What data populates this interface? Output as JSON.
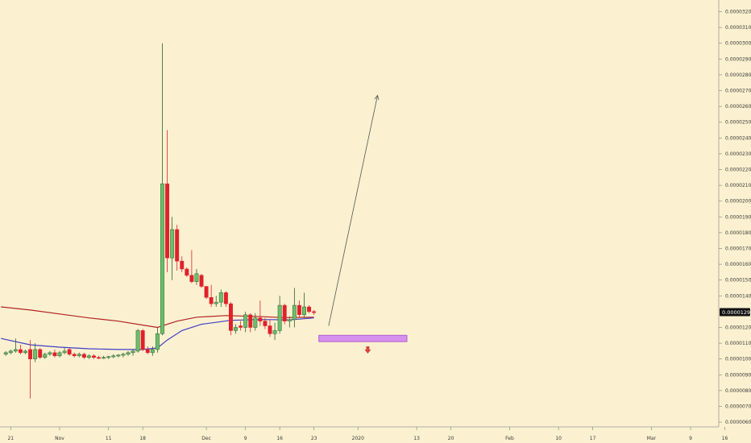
{
  "chart_data": {
    "type": "candlestick",
    "title": "",
    "xlabel": "",
    "ylabel": "",
    "ylim": [
      6e-07,
      3.3e-06
    ],
    "y_tick_labels": [
      "0.00003200",
      "0.00003100",
      "0.00003000",
      "0.00002900",
      "0.00002800",
      "0.00002700",
      "0.00002600",
      "0.00002500",
      "0.00002400",
      "0.00002300",
      "0.00002200",
      "0.00002100",
      "0.00002000",
      "0.00001900",
      "0.00001800",
      "0.00001700",
      "0.00001600",
      "0.00001500",
      "0.00001400",
      "0.00001200",
      "0.00001100",
      "0.00001000",
      "0.00000900",
      "0.00000800",
      "0.00000700",
      "0.00000600"
    ],
    "y_tick_values": [
      3.2e-06,
      3.1e-06,
      3e-06,
      2.9e-06,
      2.8e-06,
      2.7e-06,
      2.6e-06,
      2.5e-06,
      2.4e-06,
      2.3e-06,
      2.2e-06,
      2.1e-06,
      2e-06,
      1.9e-06,
      1.8e-06,
      1.7e-06,
      1.6e-06,
      1.5e-06,
      1.4e-06,
      1.2e-06,
      1.1e-06,
      1e-06,
      9e-07,
      8e-07,
      7e-07,
      6e-07
    ],
    "last_price_label": "0.00001297",
    "last_price_value": 1.297e-06,
    "x_tick_labels": [
      "21",
      "Nov",
      "11",
      "18",
      "Dec",
      "9",
      "16",
      "23",
      "2020",
      "13",
      "20",
      "Feb",
      "10",
      "17",
      "Mar",
      "9",
      "16"
    ],
    "x_tick_days": [
      -10,
      0,
      10,
      17,
      30,
      38,
      45,
      52,
      61,
      73,
      80,
      92,
      102,
      109,
      121,
      129,
      136
    ],
    "candles": [
      {
        "day": -11,
        "o": 1.03e-06,
        "h": 1.05e-06,
        "l": 1.02e-06,
        "c": 1.04e-06
      },
      {
        "day": -10,
        "o": 1.04e-06,
        "h": 1.06e-06,
        "l": 1.03e-06,
        "c": 1.05e-06
      },
      {
        "day": -9,
        "o": 1.05e-06,
        "h": 1.13e-06,
        "l": 1.04e-06,
        "c": 1.06e-06
      },
      {
        "day": -8,
        "o": 1.06e-06,
        "h": 1.09e-06,
        "l": 1.03e-06,
        "c": 1.04e-06
      },
      {
        "day": -7,
        "o": 1.04e-06,
        "h": 1.06e-06,
        "l": 1.03e-06,
        "c": 1.05e-06
      },
      {
        "day": -6,
        "o": 1.06e-06,
        "h": 1.12e-06,
        "l": 7.5e-07,
        "c": 1e-06
      },
      {
        "day": -5,
        "o": 1e-06,
        "h": 1.1e-06,
        "l": 9.8e-07,
        "c": 1.06e-06
      },
      {
        "day": -4,
        "o": 1.06e-06,
        "h": 1.07e-06,
        "l": 1e-06,
        "c": 1.01e-06
      },
      {
        "day": -3,
        "o": 1.01e-06,
        "h": 1.04e-06,
        "l": 1e-06,
        "c": 1.03e-06
      },
      {
        "day": -2,
        "o": 1.03e-06,
        "h": 1.05e-06,
        "l": 1.02e-06,
        "c": 1.04e-06
      },
      {
        "day": -1,
        "o": 1.04e-06,
        "h": 1.06e-06,
        "l": 1.01e-06,
        "c": 1.02e-06
      },
      {
        "day": 0,
        "o": 1.02e-06,
        "h": 1.05e-06,
        "l": 1.01e-06,
        "c": 1.04e-06
      },
      {
        "day": 1,
        "o": 1.04e-06,
        "h": 1.07e-06,
        "l": 1.03e-06,
        "c": 1.05e-06
      },
      {
        "day": 2,
        "o": 1.06e-06,
        "h": 1.07e-06,
        "l": 1.02e-06,
        "c": 1.03e-06
      },
      {
        "day": 3,
        "o": 1.03e-06,
        "h": 1.04e-06,
        "l": 1.01e-06,
        "c": 1.02e-06
      },
      {
        "day": 4,
        "o": 1.02e-06,
        "h": 1.04e-06,
        "l": 1.01e-06,
        "c": 1.03e-06
      },
      {
        "day": 5,
        "o": 1.03e-06,
        "h": 1.04e-06,
        "l": 1e-06,
        "c": 1.01e-06
      },
      {
        "day": 6,
        "o": 1.01e-06,
        "h": 1.03e-06,
        "l": 1e-06,
        "c": 1.02e-06
      },
      {
        "day": 7,
        "o": 1.02e-06,
        "h": 1.03e-06,
        "l": 1e-06,
        "c": 1.01e-06
      },
      {
        "day": 8,
        "o": 1.01e-06,
        "h": 1.02e-06,
        "l": 1e-06,
        "c": 1.005e-06
      },
      {
        "day": 9,
        "o": 1.005e-06,
        "h": 1.02e-06,
        "l": 1e-06,
        "c": 1.01e-06
      },
      {
        "day": 10,
        "o": 1.01e-06,
        "h": 1.02e-06,
        "l": 1e-06,
        "c": 1.015e-06
      },
      {
        "day": 11,
        "o": 1.015e-06,
        "h": 1.03e-06,
        "l": 1.005e-06,
        "c": 1.02e-06
      },
      {
        "day": 12,
        "o": 1.02e-06,
        "h": 1.03e-06,
        "l": 1.01e-06,
        "c": 1.025e-06
      },
      {
        "day": 13,
        "o": 1.025e-06,
        "h": 1.04e-06,
        "l": 1.01e-06,
        "c": 1.03e-06
      },
      {
        "day": 14,
        "o": 1.03e-06,
        "h": 1.05e-06,
        "l": 1.02e-06,
        "c": 1.04e-06
      },
      {
        "day": 15,
        "o": 1.04e-06,
        "h": 1.06e-06,
        "l": 1.02e-06,
        "c": 1.05e-06
      },
      {
        "day": 16,
        "o": 1.05e-06,
        "h": 1.19e-06,
        "l": 1.04e-06,
        "c": 1.18e-06
      },
      {
        "day": 17,
        "o": 1.18e-06,
        "h": 1.19e-06,
        "l": 1.05e-06,
        "c": 1.06e-06
      },
      {
        "day": 18,
        "o": 1.06e-06,
        "h": 1.08e-06,
        "l": 1.03e-06,
        "c": 1.04e-06
      },
      {
        "day": 19,
        "o": 1.04e-06,
        "h": 1.08e-06,
        "l": 1.02e-06,
        "c": 1.06e-06
      },
      {
        "day": 20,
        "o": 1.06e-06,
        "h": 1.2e-06,
        "l": 1.04e-06,
        "c": 1.16e-06
      },
      {
        "day": 21,
        "o": 1.16e-06,
        "h": 3e-06,
        "l": 1.15e-06,
        "c": 2.11e-06
      },
      {
        "day": 22,
        "o": 2.11e-06,
        "h": 2.45e-06,
        "l": 1.55e-06,
        "c": 1.64e-06
      },
      {
        "day": 23,
        "o": 1.64e-06,
        "h": 1.9e-06,
        "l": 1.5e-06,
        "c": 1.82e-06
      },
      {
        "day": 24,
        "o": 1.82e-06,
        "h": 1.85e-06,
        "l": 1.56e-06,
        "c": 1.62e-06
      },
      {
        "day": 25,
        "o": 1.62e-06,
        "h": 1.65e-06,
        "l": 1.55e-06,
        "c": 1.57e-06
      },
      {
        "day": 26,
        "o": 1.57e-06,
        "h": 1.58e-06,
        "l": 1.52e-06,
        "c": 1.53e-06
      },
      {
        "day": 27,
        "o": 1.53e-06,
        "h": 1.69e-06,
        "l": 1.48e-06,
        "c": 1.49e-06
      },
      {
        "day": 28,
        "o": 1.49e-06,
        "h": 1.57e-06,
        "l": 1.47e-06,
        "c": 1.54e-06
      },
      {
        "day": 29,
        "o": 1.53e-06,
        "h": 1.54e-06,
        "l": 1.45e-06,
        "c": 1.46e-06
      },
      {
        "day": 30,
        "o": 1.46e-06,
        "h": 1.46e-06,
        "l": 1.38e-06,
        "c": 1.39e-06
      },
      {
        "day": 31,
        "o": 1.39e-06,
        "h": 1.47e-06,
        "l": 1.33e-06,
        "c": 1.35e-06
      },
      {
        "day": 32,
        "o": 1.35e-06,
        "h": 1.4e-06,
        "l": 1.33e-06,
        "c": 1.36e-06
      },
      {
        "day": 33,
        "o": 1.36e-06,
        "h": 1.44e-06,
        "l": 1.33e-06,
        "c": 1.42e-06
      },
      {
        "day": 34,
        "o": 1.42e-06,
        "h": 1.43e-06,
        "l": 1.33e-06,
        "c": 1.35e-06
      },
      {
        "day": 35,
        "o": 1.35e-06,
        "h": 1.36e-06,
        "l": 1.15e-06,
        "c": 1.18e-06
      },
      {
        "day": 36,
        "o": 1.18e-06,
        "h": 1.22e-06,
        "l": 1.16e-06,
        "c": 1.2e-06
      },
      {
        "day": 37,
        "o": 1.21e-06,
        "h": 1.24e-06,
        "l": 1.18e-06,
        "c": 1.2e-06
      },
      {
        "day": 38,
        "o": 1.2e-06,
        "h": 1.3e-06,
        "l": 1.17e-06,
        "c": 1.28e-06
      },
      {
        "day": 39,
        "o": 1.28e-06,
        "h": 1.29e-06,
        "l": 1.17e-06,
        "c": 1.2e-06
      },
      {
        "day": 40,
        "o": 1.2e-06,
        "h": 1.29e-06,
        "l": 1.18e-06,
        "c": 1.26e-06
      },
      {
        "day": 41,
        "o": 1.26e-06,
        "h": 1.37e-06,
        "l": 1.21e-06,
        "c": 1.24e-06
      },
      {
        "day": 42,
        "o": 1.24e-06,
        "h": 1.26e-06,
        "l": 1.19e-06,
        "c": 1.21e-06
      },
      {
        "day": 43,
        "o": 1.21e-06,
        "h": 1.25e-06,
        "l": 1.14e-06,
        "c": 1.16e-06
      },
      {
        "day": 44,
        "o": 1.16e-06,
        "h": 1.23e-06,
        "l": 1.12e-06,
        "c": 1.18e-06
      },
      {
        "day": 45,
        "o": 1.18e-06,
        "h": 1.4e-06,
        "l": 1.16e-06,
        "c": 1.34e-06
      },
      {
        "day": 46,
        "o": 1.34e-06,
        "h": 1.35e-06,
        "l": 1.22e-06,
        "c": 1.24e-06
      },
      {
        "day": 47,
        "o": 1.24e-06,
        "h": 1.27e-06,
        "l": 1.2e-06,
        "c": 1.25e-06
      },
      {
        "day": 48,
        "o": 1.25e-06,
        "h": 1.45e-06,
        "l": 1.2e-06,
        "c": 1.34e-06
      },
      {
        "day": 49,
        "o": 1.34e-06,
        "h": 1.37e-06,
        "l": 1.26e-06,
        "c": 1.28e-06
      },
      {
        "day": 50,
        "o": 1.28e-06,
        "h": 1.42e-06,
        "l": 1.26e-06,
        "c": 1.33e-06
      },
      {
        "day": 51,
        "o": 1.33e-06,
        "h": 1.34e-06,
        "l": 1.29e-06,
        "c": 1.3e-06
      },
      {
        "day": 52,
        "o": 1.3e-06,
        "h": 1.31e-06,
        "l": 1.28e-06,
        "c": 1.297e-06
      }
    ],
    "ema_red": [
      [
        -12,
        1.33e-06
      ],
      [
        -6,
        1.31e-06
      ],
      [
        0,
        1.285e-06
      ],
      [
        6,
        1.26e-06
      ],
      [
        12,
        1.24e-06
      ],
      [
        17,
        1.215e-06
      ],
      [
        20,
        1.2e-06
      ],
      [
        24,
        1.24e-06
      ],
      [
        28,
        1.265e-06
      ],
      [
        34,
        1.275e-06
      ],
      [
        40,
        1.27e-06
      ],
      [
        46,
        1.262e-06
      ],
      [
        52,
        1.265e-06
      ]
    ],
    "ema_blue": [
      [
        -12,
        1.13e-06
      ],
      [
        -6,
        1.09e-06
      ],
      [
        0,
        1.075e-06
      ],
      [
        6,
        1.065e-06
      ],
      [
        12,
        1.06e-06
      ],
      [
        17,
        1.06e-06
      ],
      [
        20,
        1.07e-06
      ],
      [
        22,
        1.12e-06
      ],
      [
        25,
        1.18e-06
      ],
      [
        29,
        1.22e-06
      ],
      [
        35,
        1.245e-06
      ],
      [
        41,
        1.25e-06
      ],
      [
        47,
        1.248e-06
      ],
      [
        52,
        1.26e-06
      ]
    ],
    "arrow_up": {
      "from_day": 55,
      "from_value": 1.21e-06,
      "to_day": 65,
      "to_value": 2.67e-06
    },
    "zone": {
      "from_day": 53,
      "to_day": 71,
      "top": 1.15e-06,
      "bottom": 1.11e-06
    },
    "arrow_down": {
      "day": 63,
      "value": 1.06e-06
    },
    "grid": false,
    "colors": {
      "up": "#6bbf6b",
      "down": "#e0202a",
      "ema_red": "#b22222",
      "ema_blue": "#3f3fc8",
      "zone": "#d690ee",
      "zone_border": "#b35fd0",
      "arrow_down": "#d9443a",
      "axis_text": "#333333",
      "price_badge": "#111111",
      "background": "#fbf1d0"
    }
  }
}
